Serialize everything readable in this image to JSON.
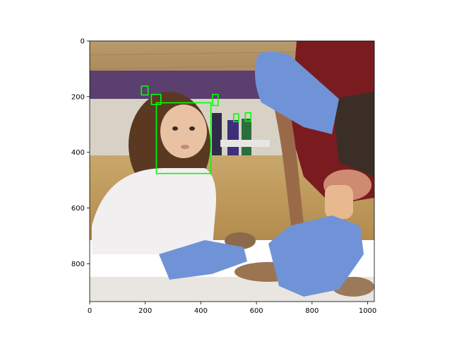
{
  "figure": {
    "description_icon": "photo-with-face-detection-boxes",
    "box_color": "#00ff00"
  },
  "axes": {
    "x_ticks": [
      "0",
      "200",
      "400",
      "600",
      "800",
      "1000"
    ],
    "y_ticks": [
      "0",
      "200",
      "400",
      "600",
      "800"
    ],
    "xlim": [
      0,
      1024
    ],
    "ylim": [
      936,
      0
    ]
  },
  "detections": [
    {
      "label": "",
      "x0": 240,
      "y0": 222,
      "x1": 436,
      "y1": 476
    },
    {
      "label": "",
      "x0": 186,
      "y0": 162,
      "x1": 210,
      "y1": 194
    },
    {
      "label": "",
      "x0": 222,
      "y0": 192,
      "x1": 256,
      "y1": 228
    },
    {
      "label": "",
      "x0": 442,
      "y0": 192,
      "x1": 462,
      "y1": 232
    },
    {
      "label": "",
      "x0": 518,
      "y0": 262,
      "x1": 536,
      "y1": 290
    },
    {
      "label": "",
      "x0": 560,
      "y0": 258,
      "x1": 580,
      "y1": 288
    }
  ]
}
